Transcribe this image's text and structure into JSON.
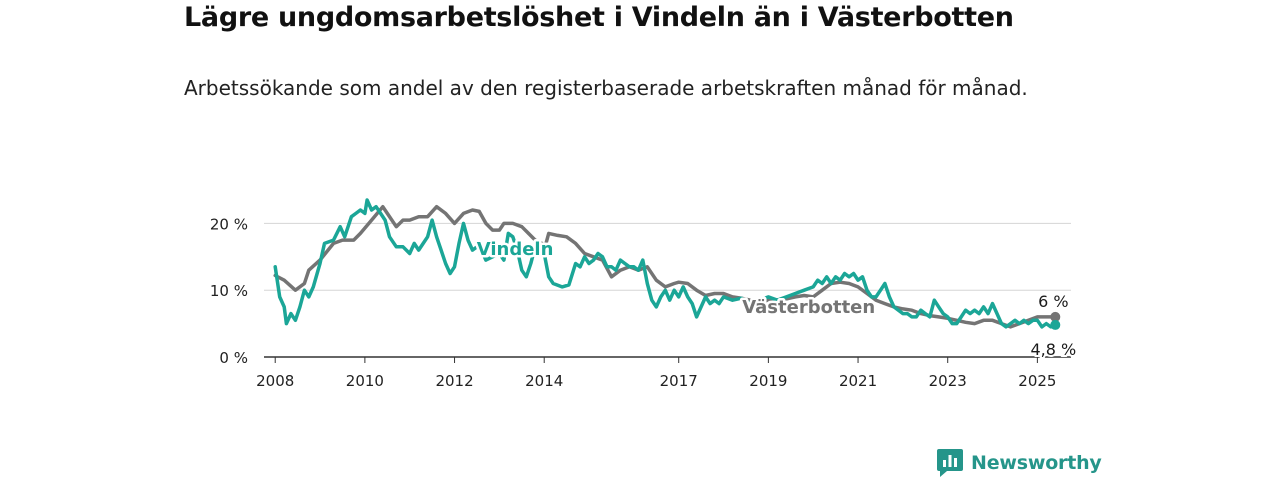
{
  "chart_data": {
    "type": "line",
    "title": "Lägre ungdomsarbetslöshet i Vindeln än i Västerbotten",
    "subtitle": "Arbetssökande som andel av den registerbaserade arbetskraften månad för månad.",
    "ylim": [
      0,
      25
    ],
    "yticks": [
      {
        "value": 0,
        "label": "0 %"
      },
      {
        "value": 10,
        "label": "10 %"
      },
      {
        "value": 20,
        "label": "20 %"
      }
    ],
    "xlim": [
      2007.75,
      2025.75
    ],
    "xticks": [
      {
        "value": 2008,
        "label": "2008"
      },
      {
        "value": 2010,
        "label": "2010"
      },
      {
        "value": 2012,
        "label": "2012"
      },
      {
        "value": 2014,
        "label": "2014"
      },
      {
        "value": 2017,
        "label": "2017"
      },
      {
        "value": 2019,
        "label": "2019"
      },
      {
        "value": 2021,
        "label": "2021"
      },
      {
        "value": 2023,
        "label": "2023"
      },
      {
        "value": 2025,
        "label": "2025"
      }
    ],
    "grid": true,
    "series": [
      {
        "name": "Västerbotten",
        "color": "#747474",
        "end_label": "6 %",
        "points": [
          [
            2008.0,
            12.2
          ],
          [
            2008.2,
            11.5
          ],
          [
            2008.45,
            10.0
          ],
          [
            2008.65,
            11.0
          ],
          [
            2008.75,
            13.0
          ],
          [
            2009.0,
            14.5
          ],
          [
            2009.3,
            17.0
          ],
          [
            2009.5,
            17.5
          ],
          [
            2009.75,
            17.5
          ],
          [
            2009.9,
            18.5
          ],
          [
            2010.15,
            20.5
          ],
          [
            2010.4,
            22.5
          ],
          [
            2010.5,
            21.5
          ],
          [
            2010.7,
            19.5
          ],
          [
            2010.85,
            20.5
          ],
          [
            2011.0,
            20.5
          ],
          [
            2011.2,
            21.0
          ],
          [
            2011.4,
            21.0
          ],
          [
            2011.6,
            22.5
          ],
          [
            2011.8,
            21.5
          ],
          [
            2012.0,
            20.0
          ],
          [
            2012.2,
            21.5
          ],
          [
            2012.4,
            22.0
          ],
          [
            2012.55,
            21.8
          ],
          [
            2012.7,
            20.0
          ],
          [
            2012.85,
            19.0
          ],
          [
            2013.0,
            19.0
          ],
          [
            2013.1,
            20.0
          ],
          [
            2013.3,
            20.0
          ],
          [
            2013.5,
            19.5
          ],
          [
            2013.65,
            18.5
          ],
          [
            2013.8,
            17.5
          ],
          [
            2013.95,
            17.0
          ],
          [
            2014.0,
            16.0
          ],
          [
            2014.1,
            18.5
          ],
          [
            2014.3,
            18.2
          ],
          [
            2014.5,
            18.0
          ],
          [
            2014.7,
            17.0
          ],
          [
            2014.9,
            15.5
          ],
          [
            2015.1,
            15.0
          ],
          [
            2015.3,
            14.5
          ],
          [
            2015.5,
            12.0
          ],
          [
            2015.7,
            13.0
          ],
          [
            2015.9,
            13.5
          ],
          [
            2016.1,
            13.0
          ],
          [
            2016.3,
            13.5
          ],
          [
            2016.5,
            11.5
          ],
          [
            2016.7,
            10.5
          ],
          [
            2016.9,
            11.0
          ],
          [
            2017.0,
            11.2
          ],
          [
            2017.2,
            11.0
          ],
          [
            2017.4,
            10.0
          ],
          [
            2017.6,
            9.2
          ],
          [
            2017.8,
            9.5
          ],
          [
            2018.0,
            9.5
          ],
          [
            2018.2,
            9.0
          ],
          [
            2018.4,
            8.8
          ],
          [
            2018.6,
            8.5
          ],
          [
            2018.8,
            8.2
          ],
          [
            2019.0,
            8.5
          ],
          [
            2019.2,
            8.5
          ],
          [
            2019.4,
            8.7
          ],
          [
            2019.6,
            9.0
          ],
          [
            2019.8,
            9.2
          ],
          [
            2020.0,
            9.0
          ],
          [
            2020.2,
            10.0
          ],
          [
            2020.4,
            11.0
          ],
          [
            2020.6,
            11.2
          ],
          [
            2020.8,
            11.0
          ],
          [
            2021.0,
            10.5
          ],
          [
            2021.2,
            9.5
          ],
          [
            2021.4,
            8.5
          ],
          [
            2021.6,
            8.0
          ],
          [
            2021.8,
            7.5
          ],
          [
            2022.0,
            7.2
          ],
          [
            2022.2,
            7.0
          ],
          [
            2022.4,
            6.5
          ],
          [
            2022.6,
            6.2
          ],
          [
            2022.8,
            6.0
          ],
          [
            2023.0,
            5.8
          ],
          [
            2023.2,
            5.5
          ],
          [
            2023.4,
            5.2
          ],
          [
            2023.6,
            5.0
          ],
          [
            2023.8,
            5.5
          ],
          [
            2024.0,
            5.5
          ],
          [
            2024.2,
            5.0
          ],
          [
            2024.4,
            4.5
          ],
          [
            2024.6,
            5.0
          ],
          [
            2024.8,
            5.5
          ],
          [
            2025.0,
            6.0
          ],
          [
            2025.2,
            6.0
          ],
          [
            2025.4,
            6.0
          ]
        ]
      },
      {
        "name": "Vindeln",
        "color": "#1ba697",
        "end_label": "4,8 %",
        "points": [
          [
            2008.0,
            13.5
          ],
          [
            2008.1,
            9.0
          ],
          [
            2008.2,
            7.5
          ],
          [
            2008.25,
            5.0
          ],
          [
            2008.35,
            6.5
          ],
          [
            2008.45,
            5.5
          ],
          [
            2008.55,
            7.5
          ],
          [
            2008.65,
            10.0
          ],
          [
            2008.75,
            9.0
          ],
          [
            2008.85,
            10.5
          ],
          [
            2009.0,
            14.0
          ],
          [
            2009.1,
            17.0
          ],
          [
            2009.3,
            17.5
          ],
          [
            2009.45,
            19.5
          ],
          [
            2009.55,
            18.0
          ],
          [
            2009.7,
            21.0
          ],
          [
            2009.8,
            21.5
          ],
          [
            2009.9,
            22.0
          ],
          [
            2010.0,
            21.5
          ],
          [
            2010.05,
            23.5
          ],
          [
            2010.15,
            22.0
          ],
          [
            2010.25,
            22.5
          ],
          [
            2010.35,
            21.5
          ],
          [
            2010.45,
            20.5
          ],
          [
            2010.55,
            18.0
          ],
          [
            2010.7,
            16.5
          ],
          [
            2010.85,
            16.5
          ],
          [
            2011.0,
            15.5
          ],
          [
            2011.1,
            17.0
          ],
          [
            2011.2,
            16.0
          ],
          [
            2011.3,
            17.0
          ],
          [
            2011.4,
            18.0
          ],
          [
            2011.5,
            20.5
          ],
          [
            2011.6,
            18.0
          ],
          [
            2011.7,
            16.0
          ],
          [
            2011.8,
            14.0
          ],
          [
            2011.9,
            12.5
          ],
          [
            2012.0,
            13.5
          ],
          [
            2012.1,
            17.0
          ],
          [
            2012.2,
            20.0
          ],
          [
            2012.3,
            17.5
          ],
          [
            2012.4,
            16.0
          ],
          [
            2012.5,
            16.5
          ],
          [
            2012.6,
            16.0
          ],
          [
            2012.7,
            14.5
          ],
          [
            2012.85,
            15.0
          ],
          [
            2013.0,
            15.5
          ],
          [
            2013.1,
            14.5
          ],
          [
            2013.2,
            18.5
          ],
          [
            2013.3,
            18.0
          ],
          [
            2013.4,
            16.0
          ],
          [
            2013.5,
            13.0
          ],
          [
            2013.6,
            12.0
          ],
          [
            2013.7,
            14.0
          ],
          [
            2013.8,
            16.5
          ],
          [
            2013.9,
            16.0
          ],
          [
            2014.0,
            15.5
          ],
          [
            2014.1,
            12.0
          ],
          [
            2014.2,
            11.0
          ],
          [
            2014.4,
            10.5
          ],
          [
            2014.55,
            10.8
          ],
          [
            2014.7,
            14.0
          ],
          [
            2014.8,
            13.5
          ],
          [
            2014.9,
            15.0
          ],
          [
            2015.0,
            14.0
          ],
          [
            2015.1,
            14.5
          ],
          [
            2015.2,
            15.5
          ],
          [
            2015.3,
            15.0
          ],
          [
            2015.4,
            13.5
          ],
          [
            2015.5,
            13.5
          ],
          [
            2015.6,
            13.0
          ],
          [
            2015.7,
            14.5
          ],
          [
            2015.8,
            14.0
          ],
          [
            2015.9,
            13.5
          ],
          [
            2016.0,
            13.5
          ],
          [
            2016.1,
            13.0
          ],
          [
            2016.2,
            14.5
          ],
          [
            2016.3,
            11.0
          ],
          [
            2016.4,
            8.5
          ],
          [
            2016.5,
            7.5
          ],
          [
            2016.6,
            9.0
          ],
          [
            2016.7,
            10.0
          ],
          [
            2016.8,
            8.5
          ],
          [
            2016.9,
            10.0
          ],
          [
            2017.0,
            9.0
          ],
          [
            2017.1,
            10.5
          ],
          [
            2017.2,
            9.0
          ],
          [
            2017.3,
            8.0
          ],
          [
            2017.4,
            6.0
          ],
          [
            2017.5,
            7.5
          ],
          [
            2017.6,
            9.0
          ],
          [
            2017.7,
            8.0
          ],
          [
            2017.8,
            8.5
          ],
          [
            2017.9,
            8.0
          ],
          [
            2018.0,
            9.0
          ],
          [
            2018.2,
            8.5
          ],
          [
            2018.4,
            8.8
          ],
          [
            2018.6,
            8.0
          ],
          [
            2018.8,
            8.5
          ],
          [
            2019.0,
            9.0
          ],
          [
            2019.2,
            8.5
          ],
          [
            2019.4,
            9.0
          ],
          [
            2019.6,
            9.5
          ],
          [
            2019.8,
            10.0
          ],
          [
            2020.0,
            10.5
          ],
          [
            2020.1,
            11.5
          ],
          [
            2020.2,
            11.0
          ],
          [
            2020.3,
            12.0
          ],
          [
            2020.4,
            11.0
          ],
          [
            2020.5,
            12.0
          ],
          [
            2020.6,
            11.5
          ],
          [
            2020.7,
            12.5
          ],
          [
            2020.8,
            12.0
          ],
          [
            2020.9,
            12.5
          ],
          [
            2021.0,
            11.5
          ],
          [
            2021.1,
            12.0
          ],
          [
            2021.2,
            10.0
          ],
          [
            2021.3,
            9.0
          ],
          [
            2021.4,
            9.0
          ],
          [
            2021.5,
            10.0
          ],
          [
            2021.6,
            11.0
          ],
          [
            2021.7,
            9.0
          ],
          [
            2021.8,
            7.5
          ],
          [
            2021.9,
            7.0
          ],
          [
            2022.0,
            6.5
          ],
          [
            2022.1,
            6.5
          ],
          [
            2022.2,
            6.0
          ],
          [
            2022.3,
            6.0
          ],
          [
            2022.4,
            7.0
          ],
          [
            2022.5,
            6.5
          ],
          [
            2022.6,
            6.0
          ],
          [
            2022.7,
            8.5
          ],
          [
            2022.8,
            7.5
          ],
          [
            2022.9,
            6.5
          ],
          [
            2023.0,
            6.0
          ],
          [
            2023.1,
            5.0
          ],
          [
            2023.2,
            5.0
          ],
          [
            2023.3,
            6.0
          ],
          [
            2023.4,
            7.0
          ],
          [
            2023.5,
            6.5
          ],
          [
            2023.6,
            7.0
          ],
          [
            2023.7,
            6.5
          ],
          [
            2023.8,
            7.5
          ],
          [
            2023.9,
            6.5
          ],
          [
            2024.0,
            8.0
          ],
          [
            2024.1,
            6.5
          ],
          [
            2024.2,
            5.0
          ],
          [
            2024.3,
            4.5
          ],
          [
            2024.4,
            5.0
          ],
          [
            2024.5,
            5.5
          ],
          [
            2024.6,
            5.0
          ],
          [
            2024.7,
            5.5
          ],
          [
            2024.8,
            5.0
          ],
          [
            2024.9,
            5.5
          ],
          [
            2025.0,
            5.5
          ],
          [
            2025.1,
            4.5
          ],
          [
            2025.2,
            5.0
          ],
          [
            2025.3,
            4.5
          ],
          [
            2025.4,
            4.8
          ]
        ]
      }
    ]
  },
  "brand": {
    "name": "Newsworthy",
    "color": "#25958a"
  },
  "colors": {
    "grid": "#d5d5d5",
    "axis": "#333333",
    "tick_text": "#222222"
  }
}
